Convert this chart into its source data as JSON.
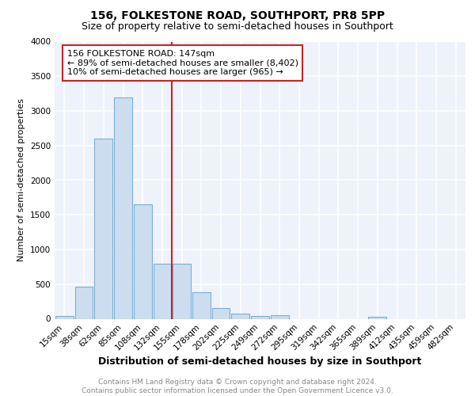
{
  "title1": "156, FOLKESTONE ROAD, SOUTHPORT, PR8 5PP",
  "title2": "Size of property relative to semi-detached houses in Southport",
  "xlabel": "Distribution of semi-detached houses by size in Southport",
  "ylabel": "Number of semi-detached properties",
  "footnote": "Contains HM Land Registry data © Crown copyright and database right 2024.\nContains public sector information licensed under the Open Government Licence v3.0.",
  "categories": [
    "15sqm",
    "38sqm",
    "62sqm",
    "85sqm",
    "108sqm",
    "132sqm",
    "155sqm",
    "178sqm",
    "202sqm",
    "225sqm",
    "249sqm",
    "272sqm",
    "295sqm",
    "319sqm",
    "342sqm",
    "365sqm",
    "389sqm",
    "412sqm",
    "435sqm",
    "459sqm",
    "482sqm"
  ],
  "values": [
    40,
    460,
    2600,
    3200,
    1650,
    800,
    800,
    380,
    155,
    70,
    40,
    55,
    0,
    0,
    0,
    0,
    25,
    0,
    0,
    0,
    0
  ],
  "bar_color": "#ccddf0",
  "bar_edge_color": "#7aafd4",
  "vline_color": "#cc2222",
  "annotation_text": "156 FOLKESTONE ROAD: 147sqm\n← 89% of semi-detached houses are smaller (8,402)\n10% of semi-detached houses are larger (965) →",
  "annotation_box_color": "#ffffff",
  "annotation_box_edge": "#cc2222",
  "ylim": [
    0,
    4000
  ],
  "yticks": [
    0,
    500,
    1000,
    1500,
    2000,
    2500,
    3000,
    3500,
    4000
  ],
  "background_color": "#eef2fb",
  "grid_color": "#ffffff",
  "title1_fontsize": 10,
  "title2_fontsize": 9,
  "xlabel_fontsize": 9,
  "ylabel_fontsize": 8,
  "footnote_fontsize": 6.5,
  "tick_fontsize": 7.5,
  "annot_fontsize": 8
}
